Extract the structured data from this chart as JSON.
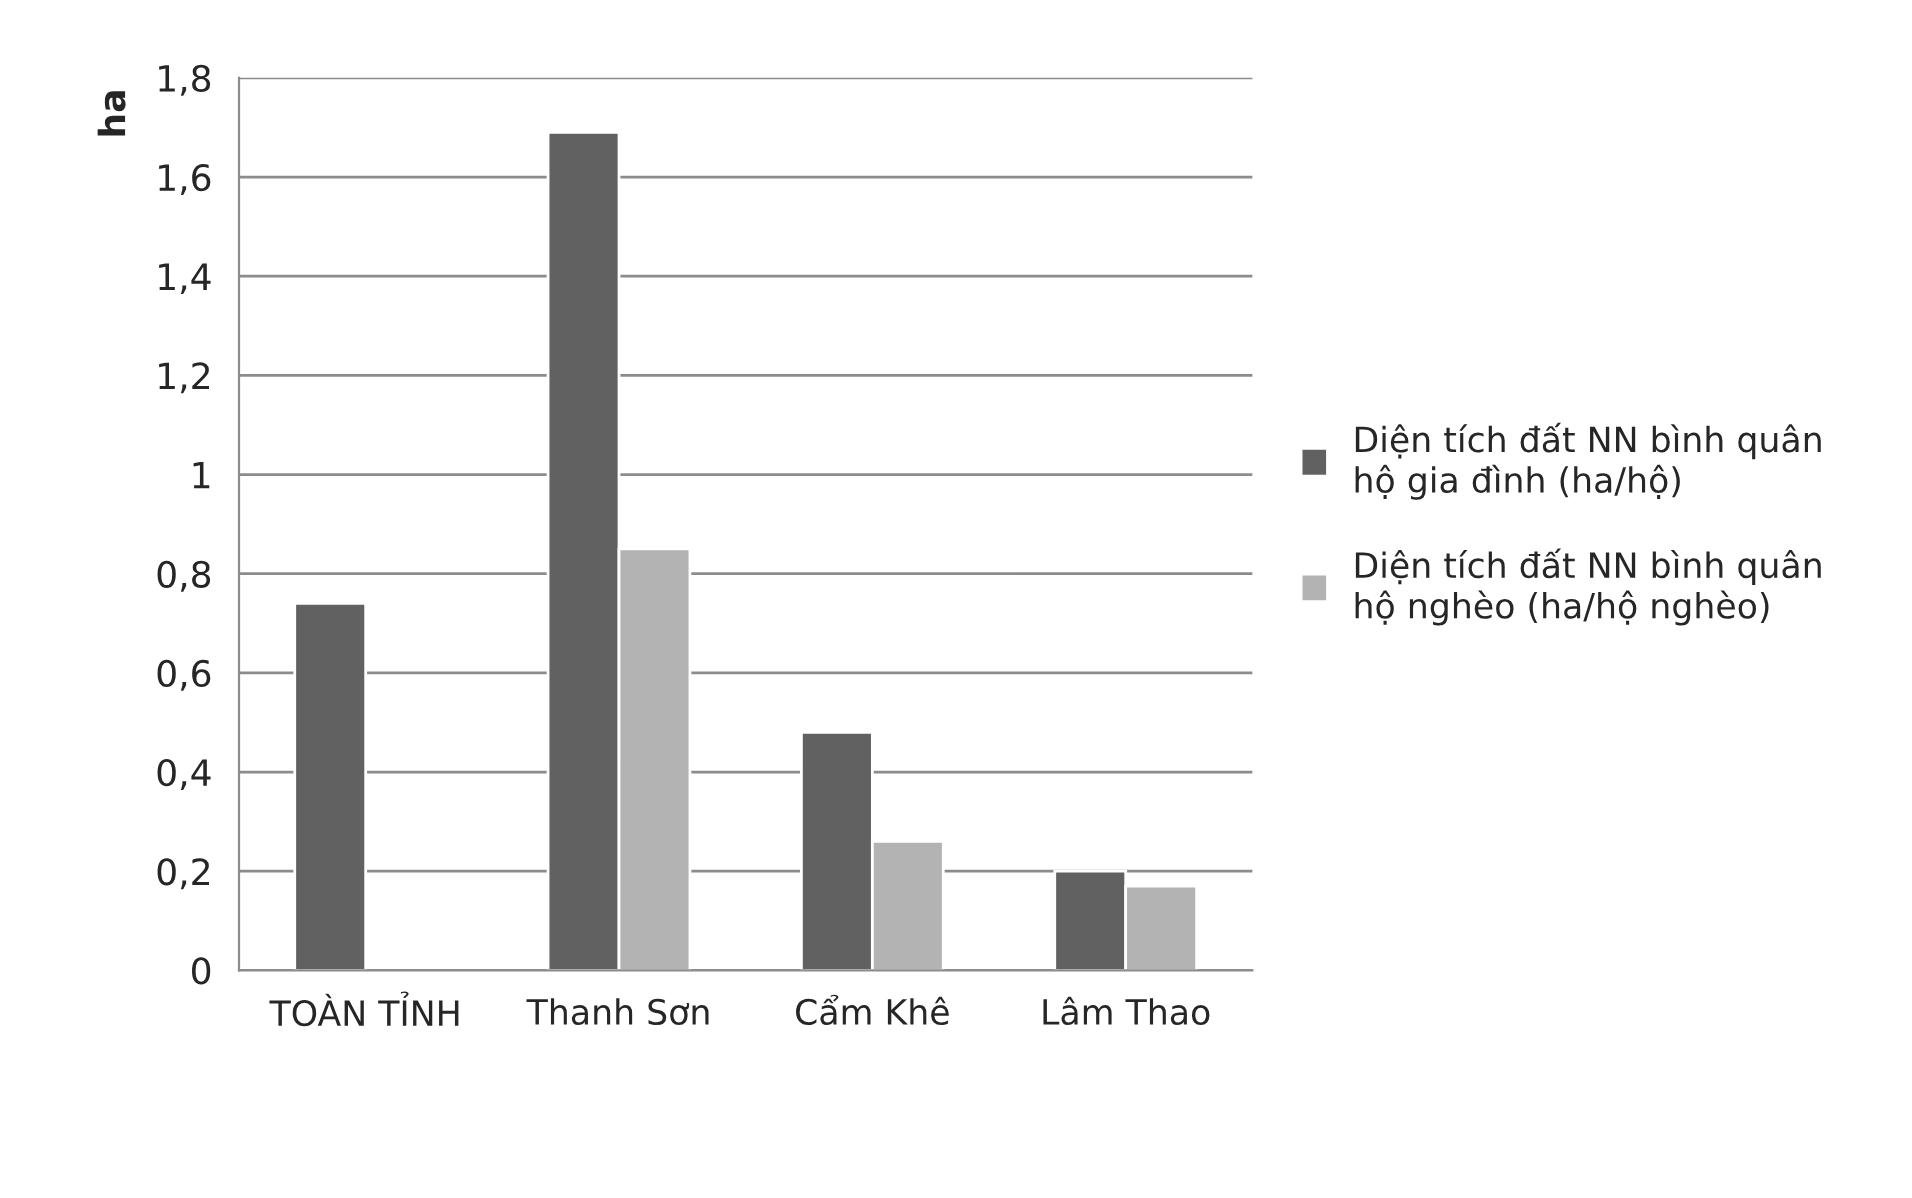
{
  "chart_data": {
    "type": "bar",
    "ylabel": "ha",
    "categories": [
      "TOÀN TỈNH",
      "Thanh Sơn",
      "Cẩm Khê",
      "Lâm Thao"
    ],
    "series": [
      {
        "name": "Diện tích đất NN bình quân hộ gia đình (ha/hộ)",
        "color": "#616161",
        "values": [
          0.74,
          1.69,
          0.48,
          0.2
        ]
      },
      {
        "name": "Diện tích đất NN bình quân hộ nghèo (ha/hộ nghèo)",
        "color": "#b3b3b3",
        "values": [
          null,
          0.85,
          0.26,
          0.17
        ]
      }
    ],
    "ylim": [
      0,
      1.8
    ],
    "yticks": [
      {
        "value": 0,
        "label": "0"
      },
      {
        "value": 0.2,
        "label": "0,2"
      },
      {
        "value": 0.4,
        "label": "0,4"
      },
      {
        "value": 0.6,
        "label": "0,6"
      },
      {
        "value": 0.8,
        "label": "0,8"
      },
      {
        "value": 1,
        "label": "1"
      },
      {
        "value": 1.2,
        "label": "1,2"
      },
      {
        "value": 1.4,
        "label": "1,4"
      },
      {
        "value": 1.6,
        "label": "1,6"
      },
      {
        "value": 1.8,
        "label": "1,8"
      }
    ],
    "grid": "y",
    "legend": "right"
  }
}
